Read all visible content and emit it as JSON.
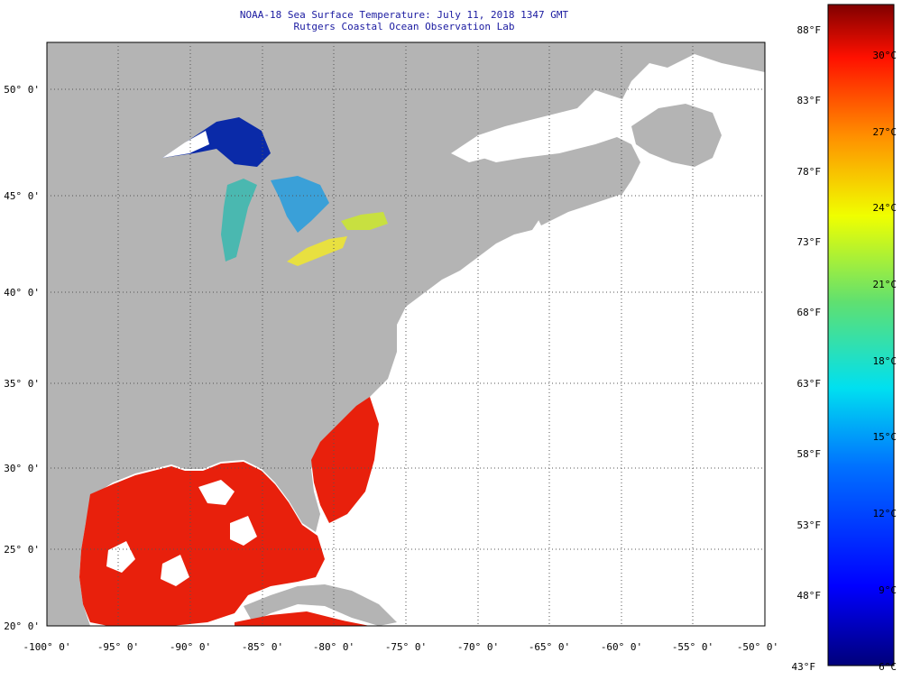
{
  "title_line1": "NOAA-18 Sea Surface Temperature:  July 11, 2018 1347 GMT",
  "title_line2": "Rutgers Coastal Ocean Observation Lab",
  "lat_labels": [
    "50° 0'",
    "45° 0'",
    "40° 0'",
    "35° 0'",
    "30° 0'",
    "25° 0'",
    "20° 0'"
  ],
  "lon_labels": [
    "-100° 0'",
    "-95° 0'",
    "-90° 0'",
    "-85° 0'",
    "-80° 0'",
    "-75° 0'",
    "-70° 0'",
    "-65° 0'",
    "-60° 0'",
    "-55° 0'",
    "-50° 0'"
  ],
  "colorbar_f": [
    "88°F",
    "83°F",
    "78°F",
    "73°F",
    "68°F",
    "63°F",
    "58°F",
    "53°F",
    "48°F",
    "43°F"
  ],
  "colorbar_c": [
    "30°C",
    "27°C",
    "24°C",
    "21°C",
    "18°C",
    "15°C",
    "12°C",
    "9°C",
    "6°C"
  ],
  "colors": {
    "land": "#b4b4b4",
    "ocean_nodata": "#ffffff",
    "warm": "#e8200c",
    "title": "#1a1aa0"
  }
}
